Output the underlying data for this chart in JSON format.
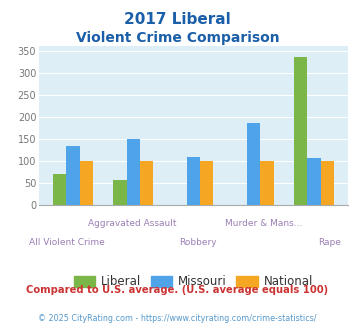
{
  "title_line1": "2017 Liberal",
  "title_line2": "Violent Crime Comparison",
  "cat_top": [
    "",
    "Aggravated Assault",
    "",
    "Murder & Mans...",
    ""
  ],
  "cat_bot": [
    "All Violent Crime",
    "",
    "Robbery",
    "",
    "Rape"
  ],
  "liberal": [
    70,
    55,
    0,
    0,
    335
  ],
  "missouri": [
    133,
    149,
    108,
    185,
    107
  ],
  "national": [
    100,
    100,
    100,
    100,
    100
  ],
  "liberal_color": "#7ab648",
  "missouri_color": "#4fa3e8",
  "national_color": "#f5a623",
  "bg_color": "#ddeef6",
  "title_color": "#1a5fa8",
  "xlabel_color": "#9b7fb6",
  "ylabel_color": "#777777",
  "ylim": [
    0,
    360
  ],
  "yticks": [
    0,
    50,
    100,
    150,
    200,
    250,
    300,
    350
  ],
  "footnote1": "Compared to U.S. average. (U.S. average equals 100)",
  "footnote2": "© 2025 CityRating.com - https://www.cityrating.com/crime-statistics/",
  "footnote1_color": "#cc3333",
  "footnote2_color": "#5599cc",
  "legend_labels": [
    "Liberal",
    "Missouri",
    "National"
  ],
  "bar_width": 0.22
}
